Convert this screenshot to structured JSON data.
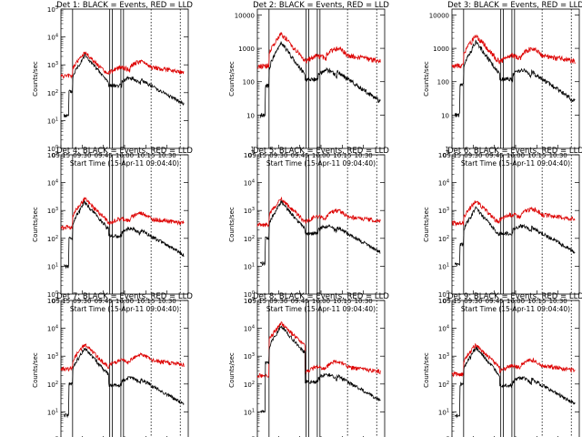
{
  "chart_data": {
    "type": "line",
    "layout": "3x3 grid",
    "xlabel": "Start Time (15-Apr-11 09:04:40)",
    "ylabel": "Counts/sec",
    "x_ticks": [
      "09:15",
      "09:30",
      "09:45",
      "10:00",
      "10:15",
      "10:30"
    ],
    "x_range_minutes": [
      9.0,
      33.0
    ],
    "series_colors": {
      "events": "#000000",
      "lld": "#dd0000"
    },
    "panels": [
      {
        "title": "Det 1: BLACK = Events, RED = LLD",
        "scale": "log",
        "ylim": [
          1,
          100000
        ],
        "y_ticks": [
          "10^0",
          "10^1",
          "10^2",
          "10^3",
          "10^4",
          "10^5"
        ],
        "y_tick_values": [
          1,
          10,
          100,
          1000,
          10000,
          100000
        ],
        "events_peak": 2200,
        "lld_peak": 2800,
        "events_tail": 300,
        "lld_tail": 800
      },
      {
        "title": "Det 2: BLACK = Events, RED = LLD",
        "scale": "log",
        "ylim": [
          1,
          15000
        ],
        "y_ticks": [
          "1",
          "10",
          "100",
          "1000",
          "10000"
        ],
        "y_tick_values": [
          1,
          10,
          100,
          1000,
          10000
        ],
        "events_peak": 1500,
        "lld_peak": 2800,
        "events_tail": 200,
        "lld_tail": 600
      },
      {
        "title": "Det 3: BLACK = Events, RED = LLD",
        "scale": "log",
        "ylim": [
          1,
          15000
        ],
        "y_ticks": [
          "1",
          "10",
          "100",
          "1000",
          "10000"
        ],
        "y_tick_values": [
          1,
          10,
          100,
          1000,
          10000
        ],
        "events_peak": 1600,
        "lld_peak": 2500,
        "events_tail": 200,
        "lld_tail": 600
      },
      {
        "title": "Det 4: BLACK = Events, RED = LLD",
        "scale": "log",
        "ylim": [
          1,
          100000
        ],
        "y_ticks": [
          "10^0",
          "10^1",
          "10^2",
          "10^3",
          "10^4",
          "10^5"
        ],
        "y_tick_values": [
          1,
          10,
          100,
          1000,
          10000,
          100000
        ],
        "events_peak": 2000,
        "lld_peak": 2600,
        "events_tail": 200,
        "lld_tail": 500
      },
      {
        "title": "Det 5: BLACK = Events, RED = LLD",
        "scale": "log",
        "ylim": [
          1,
          100000
        ],
        "y_ticks": [
          "10^0",
          "10^1",
          "10^2",
          "10^3",
          "10^4",
          "10^5"
        ],
        "y_tick_values": [
          1,
          10,
          100,
          1000,
          10000,
          100000
        ],
        "events_peak": 2000,
        "lld_peak": 2600,
        "events_tail": 250,
        "lld_tail": 600
      },
      {
        "title": "Det 6: BLACK = Events, RED = LLD",
        "scale": "log",
        "ylim": [
          1,
          100000
        ],
        "y_ticks": [
          "10^0",
          "10^1",
          "10^2",
          "10^3",
          "10^4",
          "10^5"
        ],
        "y_tick_values": [
          1,
          10,
          100,
          1000,
          10000,
          100000
        ],
        "events_peak": 1200,
        "lld_peak": 2200,
        "events_tail": 250,
        "lld_tail": 700
      },
      {
        "title": "Det 7: BLACK = Events, RED = LLD",
        "scale": "log",
        "ylim": [
          1,
          100000
        ],
        "y_ticks": [
          "10^0",
          "10^1",
          "10^2",
          "10^3",
          "10^4",
          "10^5"
        ],
        "y_tick_values": [
          1,
          10,
          100,
          1000,
          10000,
          100000
        ],
        "events_peak": 2000,
        "lld_peak": 2600,
        "events_tail": 150,
        "lld_tail": 700
      },
      {
        "title": "Det 8: BLACK = Events, RED = LLD",
        "scale": "log",
        "ylim": [
          1,
          100000
        ],
        "y_ticks": [
          "10^0",
          "10^1",
          "10^2",
          "10^3",
          "10^4",
          "10^5"
        ],
        "y_tick_values": [
          1,
          10,
          100,
          1000,
          10000,
          100000
        ],
        "events_peak": 12000,
        "lld_peak": 15000,
        "events_tail": 200,
        "lld_tail": 400
      },
      {
        "title": "Det 9: BLACK = Events, RED = LLD",
        "scale": "log",
        "ylim": [
          1,
          100000
        ],
        "y_ticks": [
          "10^0",
          "10^1",
          "10^2",
          "10^3",
          "10^4",
          "10^5"
        ],
        "y_tick_values": [
          1,
          10,
          100,
          1000,
          10000,
          100000
        ],
        "events_peak": 2000,
        "lld_peak": 2600,
        "events_tail": 150,
        "lld_tail": 450
      }
    ],
    "marker_lines_minutes": [
      11.2,
      18.2,
      18.7,
      20.3,
      20.8
    ],
    "dotted_lines_minutes": [
      26.0,
      31.5
    ],
    "legend": "none"
  }
}
